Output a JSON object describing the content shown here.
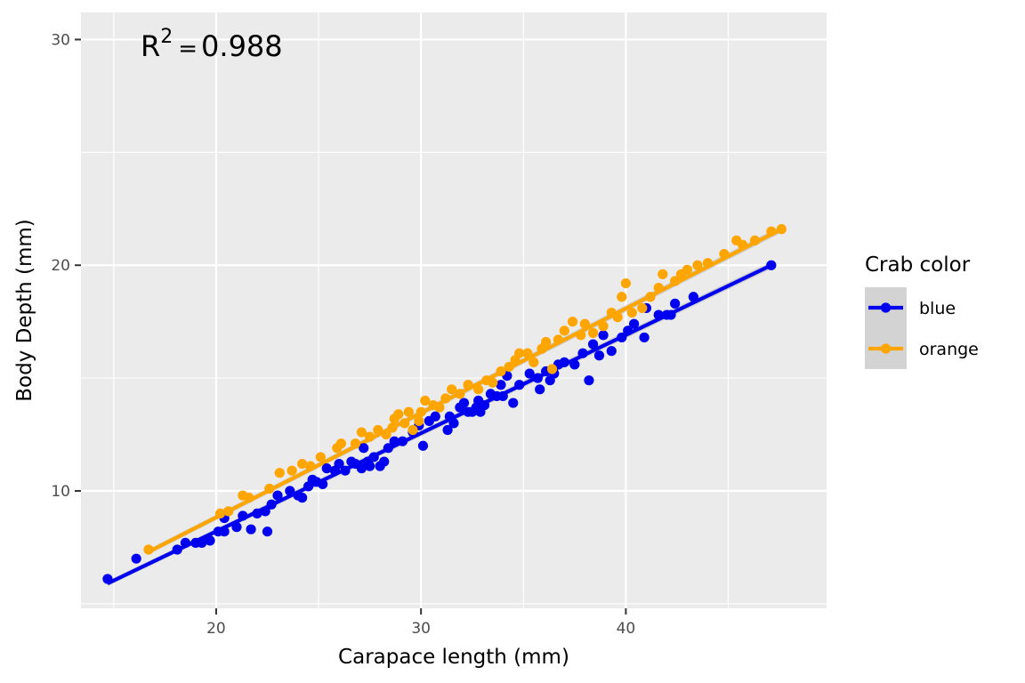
{
  "chart_data": {
    "type": "scatter",
    "xlabel": "Carapace length (mm)",
    "ylabel": "Body Depth (mm)",
    "xlim": [
      13.4,
      49.8
    ],
    "ylim": [
      4.8,
      31.2
    ],
    "x_ticks": [
      20,
      30,
      40
    ],
    "y_ticks": [
      10,
      20,
      30
    ],
    "grid": true,
    "annotation": {
      "base": "R",
      "exponent": "2",
      "equals": "=",
      "value": "0.988"
    },
    "legend": {
      "title": "Crab color",
      "placement": "right"
    },
    "series": [
      {
        "name": "blue",
        "color": "#0000ee",
        "fit": {
          "x": [
            14.7,
            47.1
          ],
          "y": [
            5.9,
            20.0
          ]
        },
        "points": [
          [
            14.7,
            6.1
          ],
          [
            16.1,
            7.0
          ],
          [
            18.1,
            7.4
          ],
          [
            18.5,
            7.7
          ],
          [
            19.0,
            7.7
          ],
          [
            19.3,
            7.7
          ],
          [
            19.7,
            7.8
          ],
          [
            20.1,
            8.2
          ],
          [
            20.4,
            8.2
          ],
          [
            20.4,
            8.8
          ],
          [
            21.0,
            8.4
          ],
          [
            21.3,
            8.9
          ],
          [
            21.7,
            8.3
          ],
          [
            22.0,
            9.0
          ],
          [
            22.4,
            9.1
          ],
          [
            22.5,
            8.2
          ],
          [
            22.7,
            9.4
          ],
          [
            23.0,
            9.8
          ],
          [
            23.6,
            10.0
          ],
          [
            24.0,
            9.8
          ],
          [
            24.2,
            9.7
          ],
          [
            24.5,
            10.2
          ],
          [
            24.7,
            10.5
          ],
          [
            24.9,
            10.4
          ],
          [
            25.2,
            10.3
          ],
          [
            25.4,
            11.0
          ],
          [
            25.8,
            10.9
          ],
          [
            26.0,
            11.2
          ],
          [
            26.3,
            10.9
          ],
          [
            26.6,
            11.3
          ],
          [
            26.8,
            11.2
          ],
          [
            27.1,
            11.0
          ],
          [
            27.2,
            11.9
          ],
          [
            27.4,
            11.3
          ],
          [
            27.5,
            11.1
          ],
          [
            27.7,
            11.5
          ],
          [
            28.0,
            11.1
          ],
          [
            28.2,
            11.3
          ],
          [
            28.4,
            11.9
          ],
          [
            28.7,
            12.2
          ],
          [
            29.1,
            12.2
          ],
          [
            29.6,
            12.6
          ],
          [
            29.9,
            12.9
          ],
          [
            30.1,
            12.0
          ],
          [
            30.4,
            13.1
          ],
          [
            30.7,
            13.3
          ],
          [
            31.3,
            12.7
          ],
          [
            31.4,
            13.3
          ],
          [
            31.6,
            13.0
          ],
          [
            31.9,
            13.7
          ],
          [
            32.1,
            13.9
          ],
          [
            32.3,
            13.5
          ],
          [
            32.5,
            13.5
          ],
          [
            32.7,
            13.7
          ],
          [
            32.8,
            14.0
          ],
          [
            32.9,
            13.5
          ],
          [
            33.1,
            13.8
          ],
          [
            33.4,
            14.3
          ],
          [
            33.7,
            14.2
          ],
          [
            33.9,
            14.7
          ],
          [
            34.0,
            14.2
          ],
          [
            34.2,
            15.1
          ],
          [
            34.5,
            13.9
          ],
          [
            34.8,
            14.7
          ],
          [
            35.3,
            15.2
          ],
          [
            35.7,
            15.0
          ],
          [
            35.8,
            14.5
          ],
          [
            36.1,
            15.3
          ],
          [
            36.3,
            14.9
          ],
          [
            36.5,
            15.2
          ],
          [
            36.7,
            15.6
          ],
          [
            37.0,
            15.7
          ],
          [
            37.5,
            15.6
          ],
          [
            37.9,
            16.1
          ],
          [
            38.2,
            14.9
          ],
          [
            38.4,
            16.5
          ],
          [
            38.7,
            16.0
          ],
          [
            38.9,
            16.9
          ],
          [
            39.3,
            16.2
          ],
          [
            39.8,
            16.8
          ],
          [
            40.1,
            17.1
          ],
          [
            40.4,
            17.4
          ],
          [
            40.9,
            16.8
          ],
          [
            41.0,
            18.1
          ],
          [
            41.6,
            17.8
          ],
          [
            42.0,
            17.8
          ],
          [
            42.2,
            17.8
          ],
          [
            42.4,
            18.3
          ],
          [
            43.3,
            18.6
          ],
          [
            47.1,
            20.0
          ]
        ]
      },
      {
        "name": "orange",
        "color": "#ffa500",
        "fit": {
          "x": [
            16.7,
            47.6
          ],
          "y": [
            7.3,
            21.6
          ]
        },
        "points": [
          [
            16.7,
            7.4
          ],
          [
            20.2,
            9.0
          ],
          [
            20.6,
            9.1
          ],
          [
            21.3,
            9.8
          ],
          [
            21.6,
            9.7
          ],
          [
            22.6,
            10.1
          ],
          [
            23.1,
            10.8
          ],
          [
            23.7,
            10.9
          ],
          [
            24.2,
            11.2
          ],
          [
            24.6,
            11.1
          ],
          [
            25.1,
            11.5
          ],
          [
            25.9,
            11.9
          ],
          [
            26.1,
            12.1
          ],
          [
            26.8,
            12.1
          ],
          [
            27.1,
            12.6
          ],
          [
            27.5,
            12.4
          ],
          [
            27.9,
            12.7
          ],
          [
            28.3,
            12.5
          ],
          [
            28.6,
            12.8
          ],
          [
            28.7,
            13.2
          ],
          [
            28.9,
            13.4
          ],
          [
            29.2,
            13.0
          ],
          [
            29.4,
            13.5
          ],
          [
            29.6,
            12.7
          ],
          [
            29.9,
            13.1
          ],
          [
            30.0,
            13.5
          ],
          [
            30.2,
            14.0
          ],
          [
            30.6,
            13.8
          ],
          [
            30.9,
            13.7
          ],
          [
            31.2,
            14.1
          ],
          [
            31.5,
            14.5
          ],
          [
            31.9,
            14.3
          ],
          [
            32.3,
            14.7
          ],
          [
            32.8,
            14.5
          ],
          [
            33.2,
            14.9
          ],
          [
            33.5,
            14.8
          ],
          [
            33.9,
            15.3
          ],
          [
            34.3,
            15.5
          ],
          [
            34.6,
            15.8
          ],
          [
            34.8,
            16.1
          ],
          [
            35.2,
            16.1
          ],
          [
            35.5,
            15.7
          ],
          [
            35.9,
            16.3
          ],
          [
            36.1,
            16.6
          ],
          [
            36.4,
            15.4
          ],
          [
            36.7,
            16.7
          ],
          [
            37.0,
            17.1
          ],
          [
            37.4,
            17.5
          ],
          [
            37.8,
            16.9
          ],
          [
            38.0,
            17.4
          ],
          [
            38.4,
            17.0
          ],
          [
            38.9,
            17.3
          ],
          [
            39.3,
            17.9
          ],
          [
            39.6,
            17.7
          ],
          [
            39.8,
            18.6
          ],
          [
            40.0,
            19.2
          ],
          [
            40.3,
            17.9
          ],
          [
            40.8,
            18.1
          ],
          [
            41.2,
            18.6
          ],
          [
            41.6,
            19.0
          ],
          [
            41.8,
            19.6
          ],
          [
            42.4,
            19.3
          ],
          [
            42.7,
            19.6
          ],
          [
            43.0,
            19.8
          ],
          [
            43.5,
            20.0
          ],
          [
            44.0,
            20.1
          ],
          [
            44.8,
            20.5
          ],
          [
            45.4,
            21.1
          ],
          [
            45.7,
            20.9
          ],
          [
            46.3,
            21.1
          ],
          [
            47.1,
            21.5
          ],
          [
            47.6,
            21.6
          ]
        ]
      }
    ]
  }
}
